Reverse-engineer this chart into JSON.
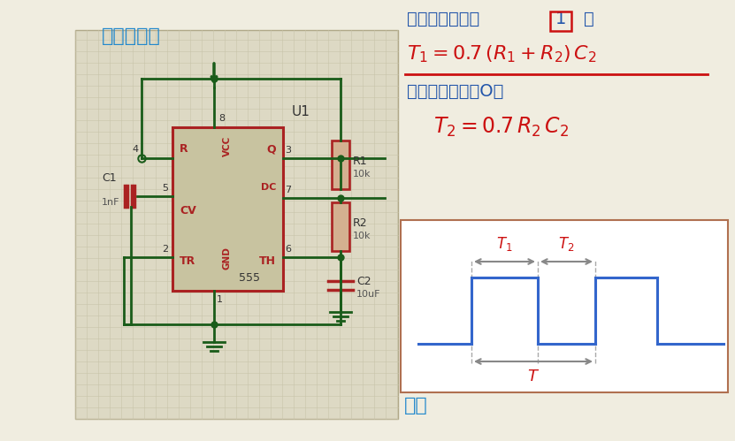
{
  "bg_color": "#f0ede0",
  "grid_bg": "#ddd9c4",
  "title_text": "多谐振荡器",
  "title_color": "#2288cc",
  "title_fontsize": 16,
  "charge_text": "充电期（输出为",
  "charge_text2": "1）",
  "charge_color": "#2255aa",
  "charge_fontsize": 14,
  "formula1_color": "#cc1111",
  "formula1_fontsize": 16,
  "discharge_text": "放电期（输出为O）",
  "discharge_color": "#2255aa",
  "discharge_fontsize": 14,
  "formula2_color": "#cc1111",
  "formula2_fontsize": 17,
  "period_text": "周期",
  "period_color": "#2288cc",
  "period_fontsize": 16,
  "circuit_color": "#1a5c1a",
  "chip_fill": "#c8c3a0",
  "chip_border": "#aa2222",
  "wire_lw": 2.0,
  "chip_lw": 2.2,
  "waveform_color": "#3366cc",
  "waveform_lw": 2.2,
  "annotation_color": "#cc1111",
  "arrow_color": "#888888",
  "box_border_color": "#b07050",
  "box_bg": "#ffffff",
  "res_fill": "#d4b090",
  "res_border": "#aa2222",
  "cap_color": "#aa2222"
}
